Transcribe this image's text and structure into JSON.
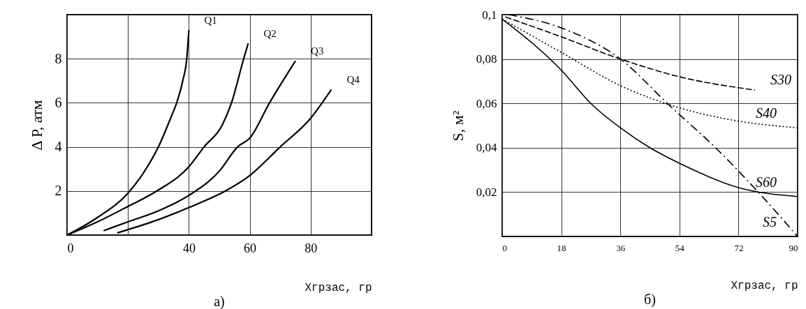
{
  "chart_data": [
    {
      "type": "line",
      "title": "а)",
      "xlabel": "Хгрзас, гр",
      "ylabel": "Δ P, атм",
      "xlim": [
        0,
        100
      ],
      "ylim": [
        0,
        10
      ],
      "xticks": [
        0,
        {
          "value": 20,
          "label": null
        },
        40,
        60,
        80
      ],
      "yticks": [
        2,
        4,
        6,
        8
      ],
      "grid": true,
      "legend": false,
      "series": [
        {
          "name": "Q1",
          "color": "#000000",
          "line_style": "solid",
          "x": [
            0,
            10,
            20,
            25,
            30,
            34,
            36,
            38,
            39.3,
            40
          ],
          "values": [
            0,
            0.8,
            1.9,
            2.8,
            4,
            5.3,
            6,
            7,
            8,
            9.3
          ]
        },
        {
          "name": "Q2",
          "color": "#000000",
          "line_style": "solid",
          "x": [
            0,
            10,
            20,
            29.5,
            40,
            45,
            51,
            54,
            58,
            59.5
          ],
          "values": [
            0,
            0.6,
            1.3,
            2,
            3.1,
            4,
            5,
            6,
            8,
            8.7
          ]
        },
        {
          "name": "Q3",
          "color": "#000000",
          "line_style": "solid",
          "x": [
            12,
            20,
            30,
            40,
            50,
            56,
            60,
            66.5,
            75
          ],
          "values": [
            0.2,
            0.6,
            1.1,
            1.8,
            2.9,
            4,
            4.4,
            6,
            7.9
          ]
        },
        {
          "name": "Q4",
          "color": "#000000",
          "line_style": "solid",
          "x": [
            16.5,
            30,
            40,
            52,
            60,
            70,
            80,
            86.8
          ],
          "values": [
            0.1,
            0.7,
            1.25,
            2,
            2.7,
            4,
            5.3,
            6.6
          ]
        }
      ]
    },
    {
      "type": "line",
      "title": "б)",
      "xlabel": "Хгрзас, гр",
      "ylabel": "S, м²",
      "xlim": [
        0,
        90
      ],
      "ylim": [
        0,
        0.1
      ],
      "xticks": [
        0,
        18,
        36,
        54,
        72,
        90
      ],
      "yticks": [
        {
          "value": 0.02,
          "label": "0,02"
        },
        {
          "value": 0.04,
          "label": "0,04"
        },
        {
          "value": 0.06,
          "label": "0,06"
        },
        {
          "value": 0.08,
          "label": "0,08"
        },
        {
          "value": 0.1,
          "label": "0,1"
        }
      ],
      "grid": true,
      "legend": false,
      "series": [
        {
          "name": "S30",
          "color": "#000000",
          "line_style": "dashed",
          "x": [
            1,
            18,
            36,
            54,
            77
          ],
          "values": [
            0.099,
            0.09,
            0.08,
            0.072,
            0.066
          ]
        },
        {
          "name": "S40",
          "color": "#000000",
          "line_style": "dotted",
          "x": [
            0,
            18,
            36,
            54,
            72,
            90
          ],
          "values": [
            0.098,
            0.083,
            0.068,
            0.058,
            0.052,
            0.049
          ]
        },
        {
          "name": "S5",
          "color": "#000000",
          "line_style": "dashdot",
          "x": [
            2,
            18,
            36,
            51,
            65,
            78,
            90
          ],
          "values": [
            0.1,
            0.094,
            0.08,
            0.059,
            0.04,
            0.02,
            0
          ]
        },
        {
          "name": "S60",
          "color": "#000000",
          "line_style": "solid",
          "x": [
            0,
            18,
            27,
            36,
            45,
            54,
            72,
            90
          ],
          "values": [
            0.098,
            0.075,
            0.06,
            0.049,
            0.04,
            0.033,
            0.022,
            0.018
          ]
        }
      ]
    }
  ]
}
